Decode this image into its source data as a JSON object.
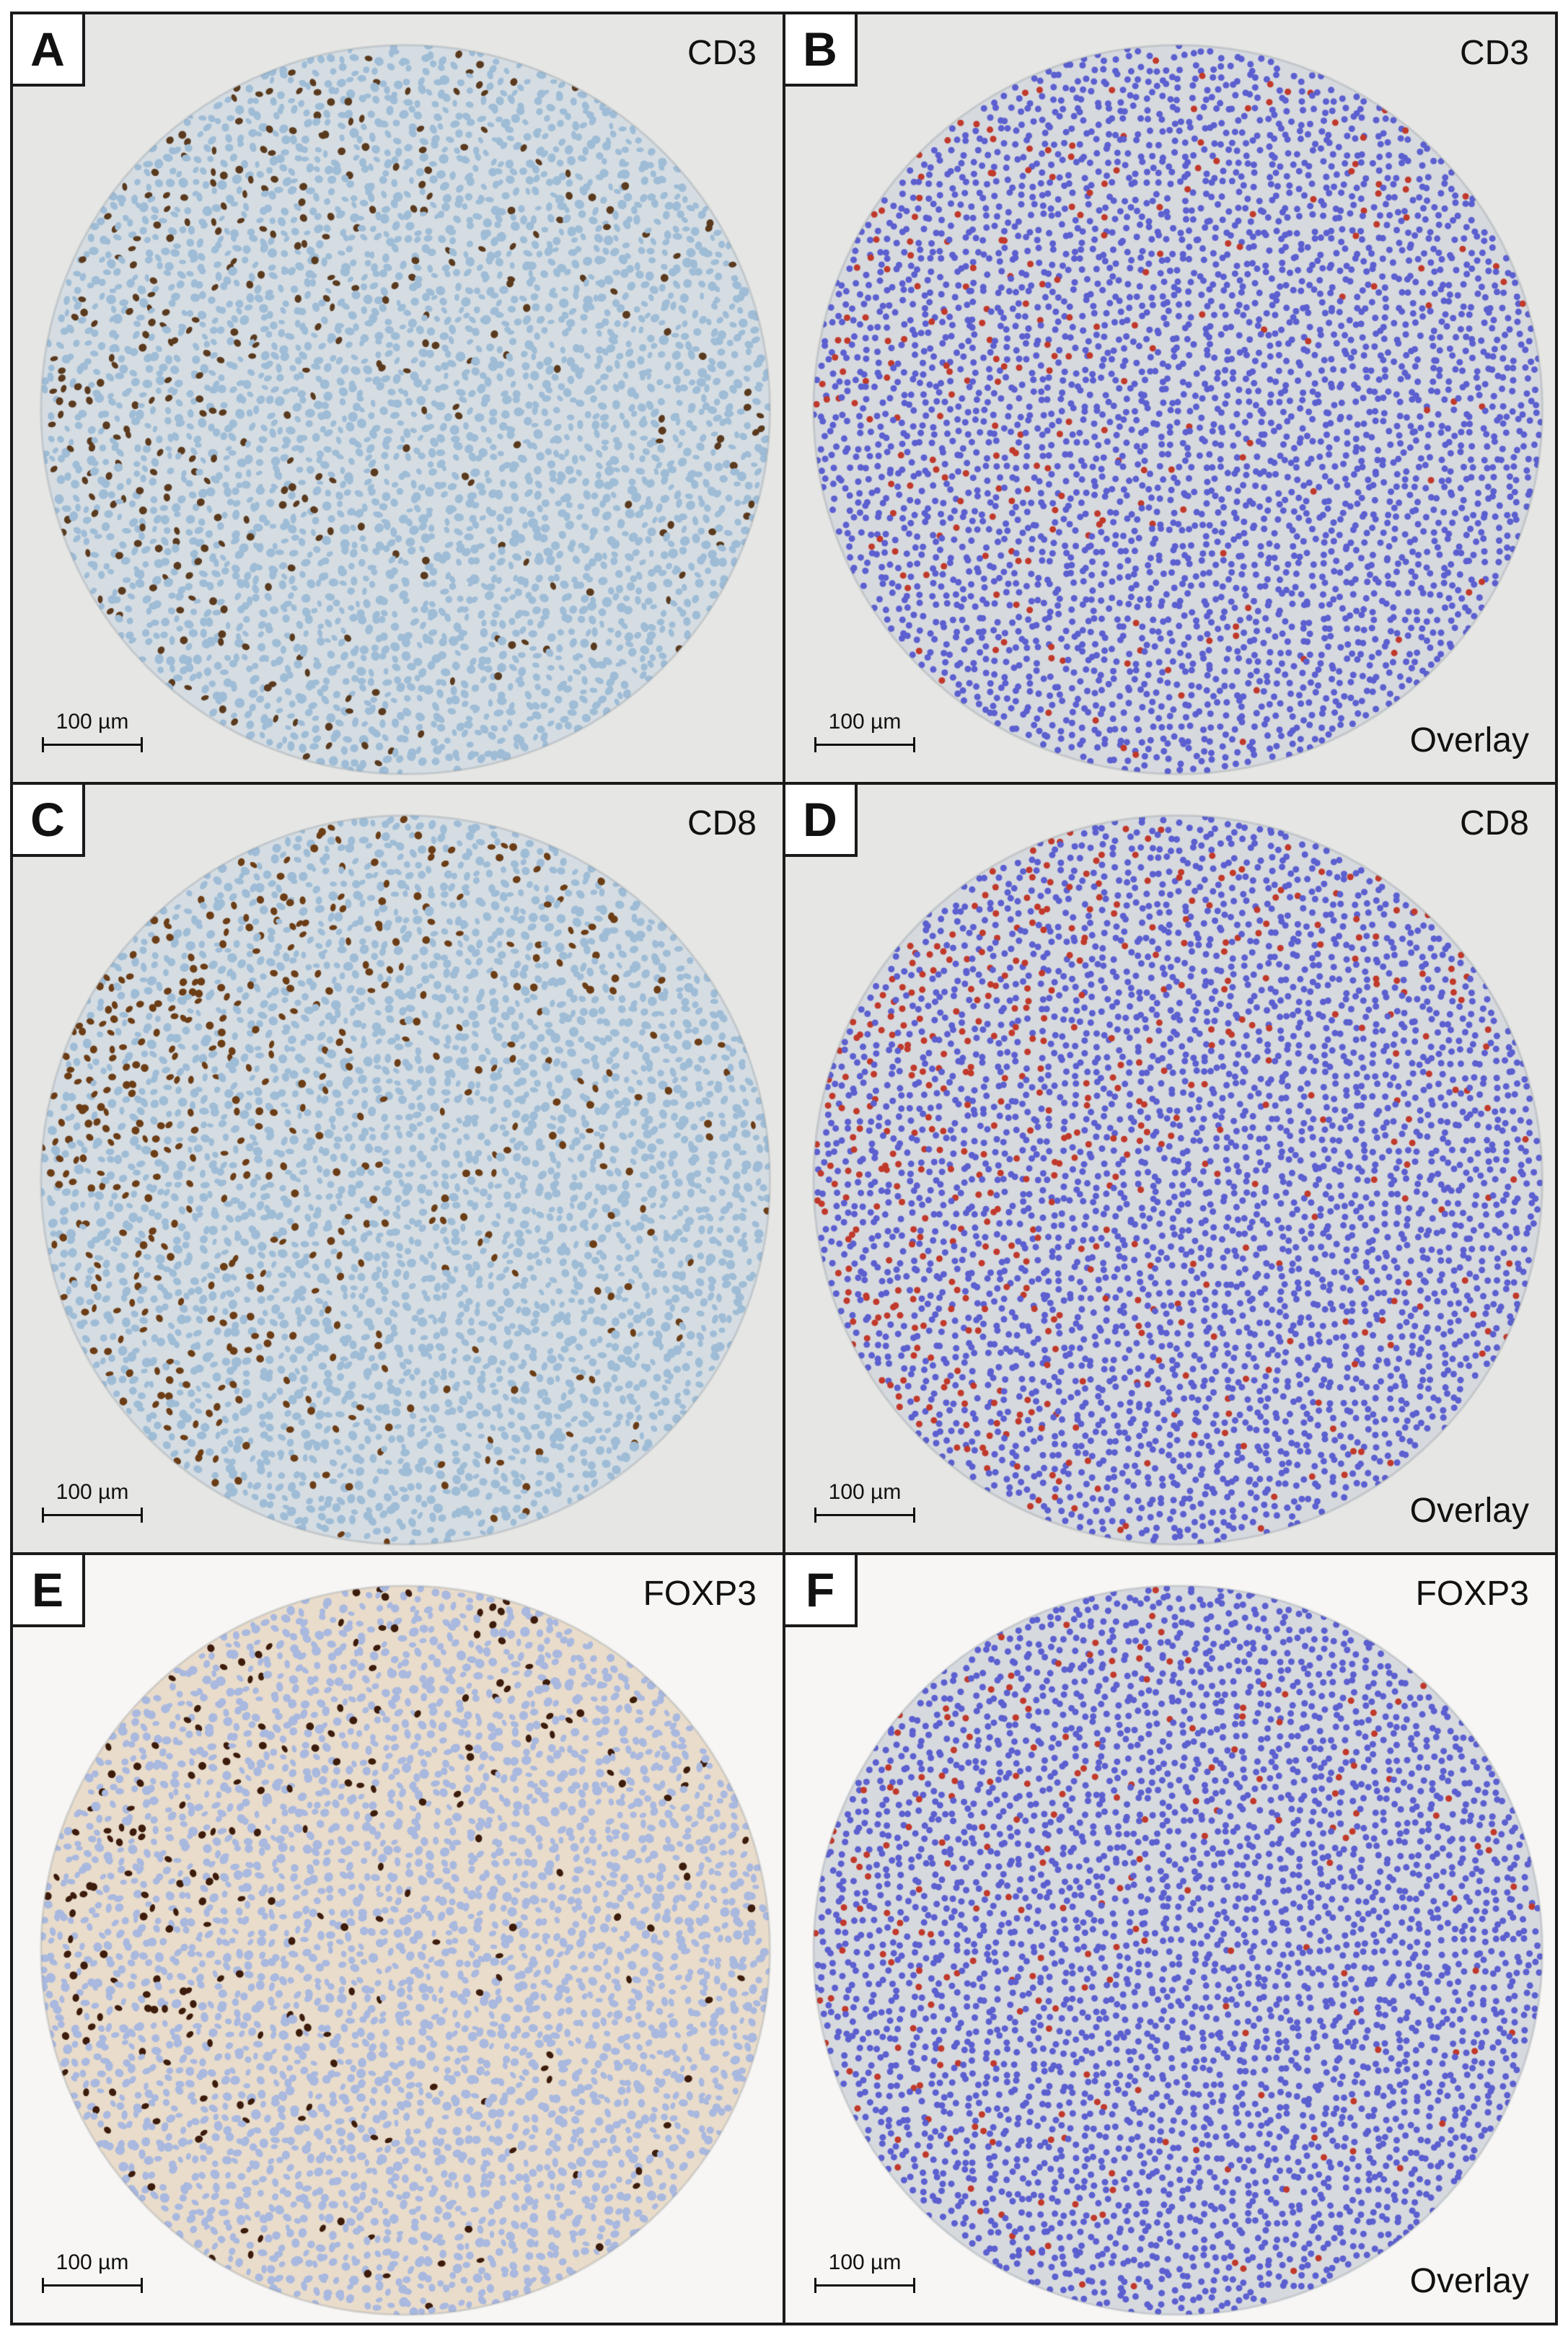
{
  "panels": [
    {
      "letter": "A",
      "stain": "CD3",
      "overlay": "",
      "scale": "100 µm",
      "kind": "ihc",
      "marker_color": "#5a3a1e",
      "density": 0.1,
      "background": "#e6e6e4",
      "nucleus_color": "#9fbcd6"
    },
    {
      "letter": "B",
      "stain": "CD3",
      "overlay": "Overlay",
      "scale": "100 µm",
      "kind": "overlay",
      "marker_color": "#c0392b",
      "density": 0.06,
      "background": "#e6e6e4",
      "nucleus_color": "#5b5fcf"
    },
    {
      "letter": "C",
      "stain": "CD8",
      "overlay": "",
      "scale": "100 µm",
      "kind": "ihc",
      "marker_color": "#6b3d16",
      "density": 0.14,
      "background": "#e6e6e4",
      "nucleus_color": "#9fbcd6"
    },
    {
      "letter": "D",
      "stain": "CD8",
      "overlay": "Overlay",
      "scale": "100 µm",
      "kind": "overlay",
      "marker_color": "#c0392b",
      "density": 0.12,
      "background": "#e6e6e4",
      "nucleus_color": "#5b5fcf"
    },
    {
      "letter": "E",
      "stain": "FOXP3",
      "overlay": "",
      "scale": "100 µm",
      "kind": "ihc",
      "marker_color": "#3d1c0c",
      "density": 0.07,
      "background": "#f7f6f4",
      "nucleus_color": "#a9b8df"
    },
    {
      "letter": "F",
      "stain": "FOXP3",
      "overlay": "Overlay",
      "scale": "100 µm",
      "kind": "overlay",
      "marker_color": "#c0392b",
      "density": 0.06,
      "background": "#f7f6f4",
      "nucleus_color": "#5b5fcf"
    }
  ]
}
